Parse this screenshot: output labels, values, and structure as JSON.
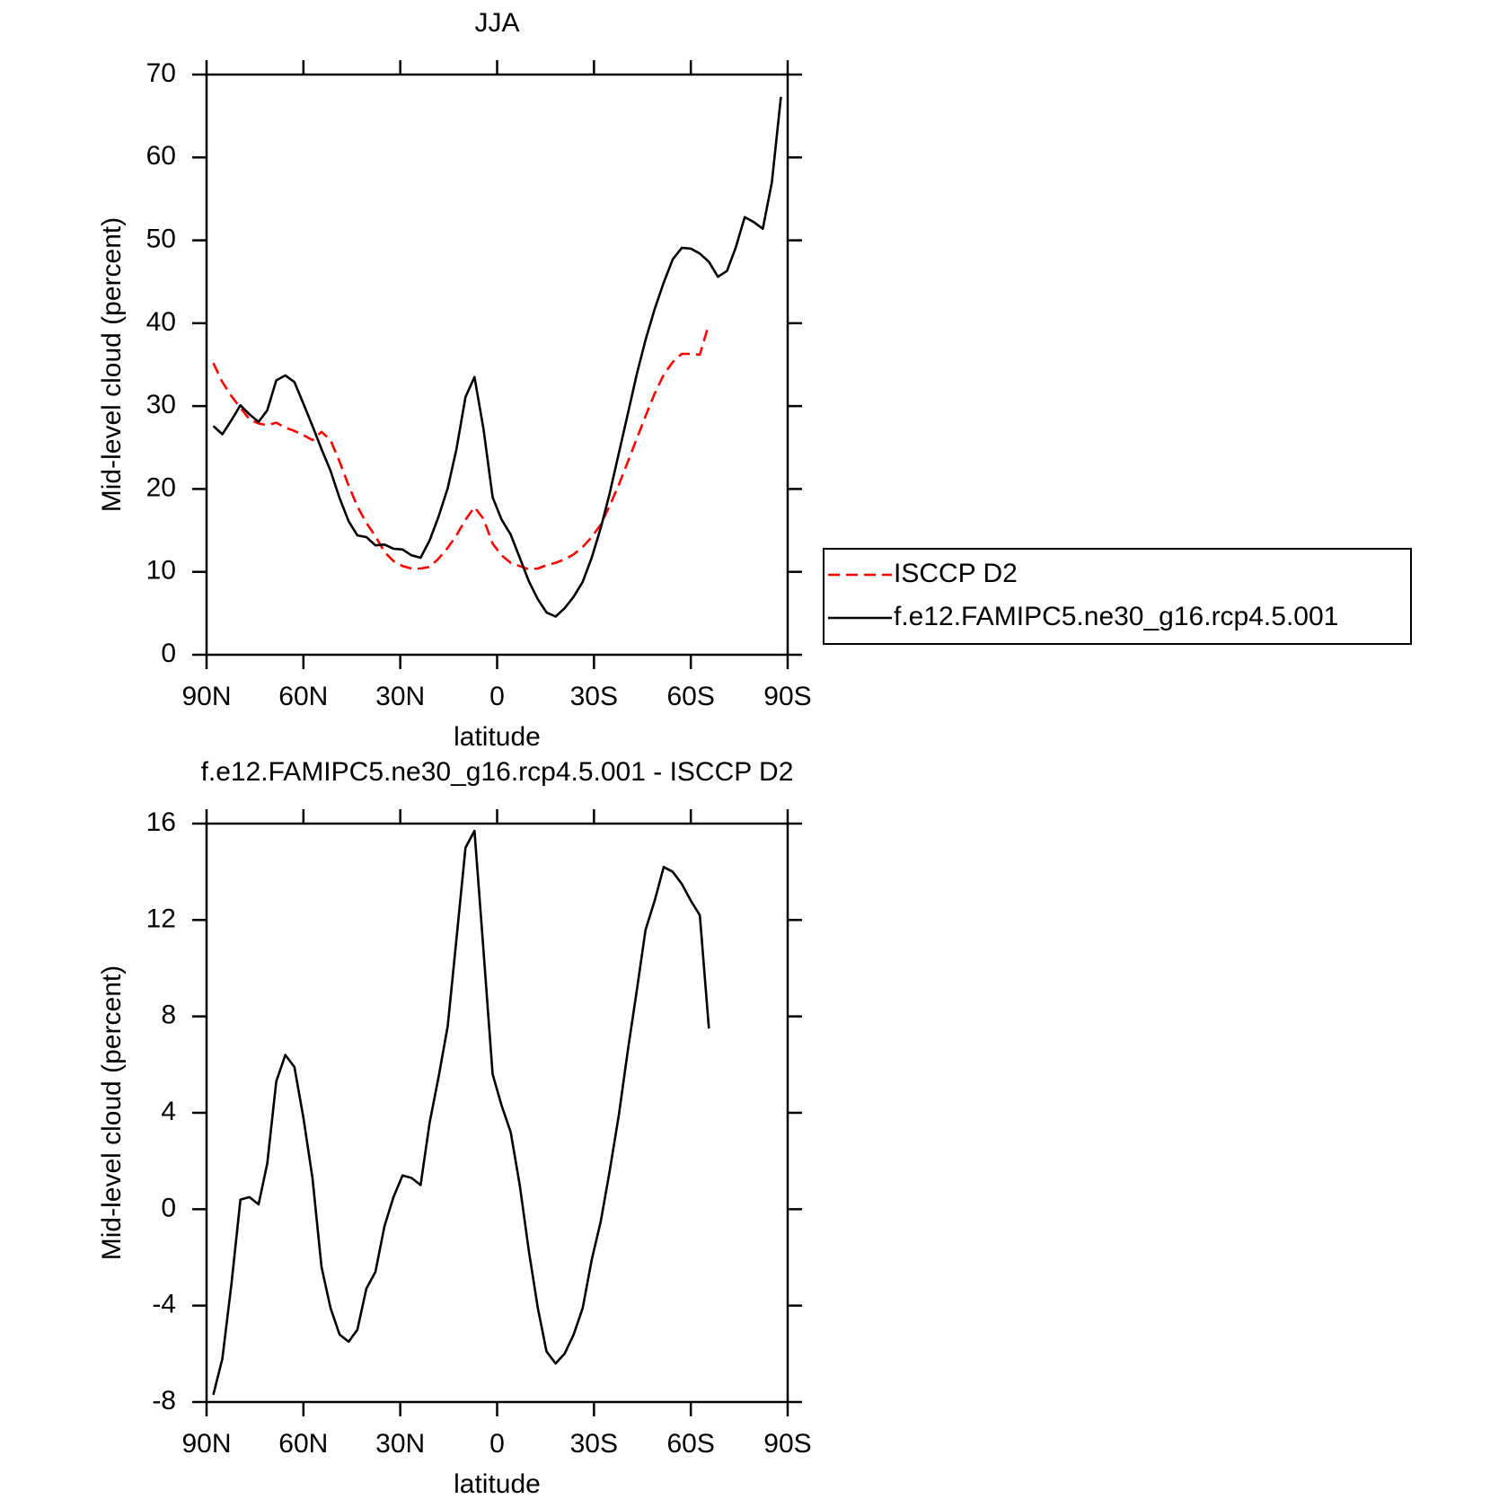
{
  "chart_data": [
    {
      "type": "line",
      "title": "JJA",
      "xlabel": "latitude",
      "ylabel": "Mid-level cloud (percent)",
      "x": [
        87.9,
        85.1,
        82.3,
        79.5,
        76.7,
        73.9,
        71.2,
        68.4,
        65.6,
        62.8,
        60.0,
        57.2,
        54.4,
        51.6,
        48.8,
        46.0,
        43.3,
        40.5,
        37.7,
        34.9,
        32.1,
        29.3,
        26.5,
        23.7,
        20.9,
        18.1,
        15.3,
        12.6,
        9.8,
        7.0,
        4.2,
        1.4,
        -1.4,
        -4.2,
        -7.0,
        -9.8,
        -12.6,
        -15.3,
        -18.1,
        -20.9,
        -23.7,
        -26.5,
        -29.3,
        -32.1,
        -34.9,
        -37.7,
        -40.5,
        -43.3,
        -46.0,
        -48.8,
        -51.6,
        -54.4,
        -57.2,
        -60.0,
        -62.8,
        -65.6,
        -68.4,
        -71.2,
        -73.9,
        -76.7,
        -79.5,
        -82.3,
        -85.1,
        -87.9
      ],
      "series": [
        {
          "name": "ISCCP D2",
          "color": "#ff0000",
          "linestyle": "dashed",
          "values": [
            35.2,
            32.9,
            31.2,
            29.8,
            28.4,
            27.9,
            27.7,
            28.0,
            27.4,
            27.0,
            26.5,
            25.9,
            26.9,
            25.9,
            23.3,
            20.4,
            17.9,
            15.9,
            14.3,
            12.4,
            11.3,
            10.7,
            10.4,
            10.4,
            10.6,
            11.6,
            12.9,
            14.4,
            16.3,
            17.8,
            16.4,
            13.4,
            12.0,
            11.1,
            10.7,
            10.3,
            10.4,
            10.8,
            11.1,
            11.5,
            12.1,
            13.0,
            14.2,
            15.7,
            18.0,
            20.5,
            23.3,
            26.1,
            28.8,
            31.5,
            33.8,
            35.3,
            36.3,
            36.3,
            36.2,
            39.9,
            null,
            null,
            null,
            null,
            null,
            null,
            null,
            null
          ]
        },
        {
          "name": "f.e12.FAMIPC5.ne30_g16.rcp4.5.001",
          "color": "#000000",
          "linestyle": "solid",
          "values": [
            27.6,
            26.6,
            28.3,
            30.1,
            29.0,
            28.1,
            29.5,
            33.1,
            33.7,
            32.9,
            30.3,
            27.6,
            24.8,
            22.2,
            18.9,
            16.1,
            14.4,
            14.2,
            13.2,
            13.3,
            12.8,
            12.7,
            12.0,
            11.7,
            13.8,
            16.7,
            20.1,
            24.8,
            31.1,
            33.5,
            27.2,
            19.0,
            16.3,
            14.5,
            11.7,
            8.9,
            6.7,
            5.1,
            4.6,
            5.6,
            7.0,
            8.8,
            11.7,
            15.3,
            19.5,
            24.3,
            29.1,
            33.9,
            38.0,
            41.7,
            44.9,
            47.7,
            49.1,
            49.0,
            48.4,
            47.4,
            45.6,
            46.3,
            49.1,
            52.8,
            52.2,
            51.4,
            57.0,
            67.3
          ]
        }
      ],
      "xlim": [
        90,
        -90
      ],
      "xticks": [
        {
          "value": 90,
          "label": "90N"
        },
        {
          "value": 60,
          "label": "60N"
        },
        {
          "value": 30,
          "label": "30N"
        },
        0,
        {
          "value": -30,
          "label": "30S"
        },
        {
          "value": -60,
          "label": "60S"
        },
        {
          "value": -90,
          "label": "90S"
        }
      ],
      "ylim": [
        0,
        70
      ],
      "yticks": [
        0,
        10,
        20,
        30,
        40,
        50,
        60,
        70
      ],
      "legend": "right"
    },
    {
      "type": "line",
      "title": "f.e12.FAMIPC5.ne30_g16.rcp4.5.001 - ISCCP D2",
      "xlabel": "latitude",
      "ylabel": "Mid-level cloud (percent)",
      "x": [
        87.9,
        85.1,
        82.3,
        79.5,
        76.7,
        73.9,
        71.2,
        68.4,
        65.6,
        62.8,
        60.0,
        57.2,
        54.4,
        51.6,
        48.8,
        46.0,
        43.3,
        40.5,
        37.7,
        34.9,
        32.1,
        29.3,
        26.5,
        23.7,
        20.9,
        18.1,
        15.3,
        12.6,
        9.8,
        7.0,
        4.2,
        1.4,
        -1.4,
        -4.2,
        -7.0,
        -9.8,
        -12.6,
        -15.3,
        -18.1,
        -20.9,
        -23.7,
        -26.5,
        -29.3,
        -32.1,
        -34.9,
        -37.7,
        -40.5,
        -43.3,
        -46.0,
        -48.8,
        -51.6,
        -54.4,
        -57.2,
        -60.0,
        -62.8,
        -65.6
      ],
      "series": [
        {
          "color": "#000000",
          "linestyle": "solid",
          "values": [
            -7.7,
            -6.2,
            -3.1,
            0.4,
            0.5,
            0.2,
            1.9,
            5.3,
            6.4,
            5.9,
            3.8,
            1.3,
            -2.4,
            -4.1,
            -5.2,
            -5.5,
            -5.0,
            -3.3,
            -2.6,
            -0.7,
            0.5,
            1.4,
            1.3,
            1.0,
            3.6,
            5.5,
            7.6,
            11.2,
            15.0,
            15.7,
            10.7,
            5.6,
            4.3,
            3.2,
            1.0,
            -1.7,
            -4.1,
            -5.9,
            -6.4,
            -6.0,
            -5.2,
            -4.1,
            -2.1,
            -0.5,
            1.6,
            3.9,
            6.6,
            9.1,
            11.6,
            12.8,
            14.2,
            14.0,
            13.5,
            12.8,
            12.2,
            7.5
          ]
        }
      ],
      "xlim": [
        90,
        -90
      ],
      "xticks": [
        {
          "value": 90,
          "label": "90N"
        },
        {
          "value": 60,
          "label": "60N"
        },
        {
          "value": 30,
          "label": "30N"
        },
        0,
        {
          "value": -30,
          "label": "30S"
        },
        {
          "value": -60,
          "label": "60S"
        },
        {
          "value": -90,
          "label": "90S"
        }
      ],
      "ylim": [
        -8,
        16
      ],
      "yticks": [
        -8,
        -4,
        0,
        4,
        8,
        12,
        16
      ]
    }
  ]
}
